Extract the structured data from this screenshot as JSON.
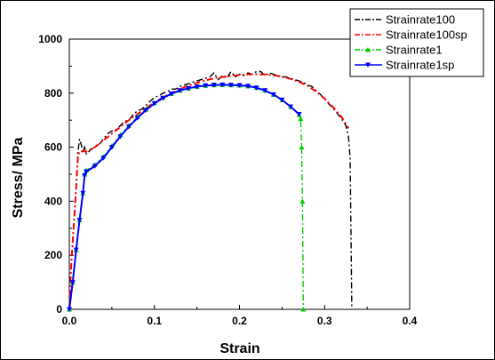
{
  "chart_data": {
    "type": "line",
    "xlabel": "Strain",
    "ylabel": "Stress/ MPa",
    "xlim": [
      0,
      0.4
    ],
    "ylim": [
      0,
      1000
    ],
    "x_ticks": [
      0.0,
      0.1,
      0.2,
      0.3,
      0.4
    ],
    "x_tick_labels": [
      "0.0",
      "0.1",
      "0.2",
      "0.3",
      "0.4"
    ],
    "y_ticks": [
      0,
      200,
      400,
      600,
      800,
      1000
    ],
    "y_tick_labels": [
      "0",
      "200",
      "400",
      "600",
      "800",
      "1000"
    ],
    "grid": false,
    "legend_position": "top-right",
    "series": [
      {
        "name": "Strainrate100",
        "color": "#000000",
        "dash": "dash-dot",
        "marker": "none",
        "points": [
          [
            0.0,
            0
          ],
          [
            0.002,
            150
          ],
          [
            0.005,
            300
          ],
          [
            0.008,
            450
          ],
          [
            0.01,
            580
          ],
          [
            0.012,
            630
          ],
          [
            0.014,
            610
          ],
          [
            0.016,
            580
          ],
          [
            0.018,
            600
          ],
          [
            0.02,
            575
          ],
          [
            0.025,
            590
          ],
          [
            0.03,
            600
          ],
          [
            0.035,
            610
          ],
          [
            0.04,
            630
          ],
          [
            0.045,
            650
          ],
          [
            0.05,
            660
          ],
          [
            0.055,
            665
          ],
          [
            0.06,
            680
          ],
          [
            0.065,
            695
          ],
          [
            0.07,
            700
          ],
          [
            0.075,
            720
          ],
          [
            0.08,
            735
          ],
          [
            0.085,
            740
          ],
          [
            0.09,
            755
          ],
          [
            0.095,
            770
          ],
          [
            0.1,
            785
          ],
          [
            0.105,
            790
          ],
          [
            0.11,
            800
          ],
          [
            0.115,
            805
          ],
          [
            0.12,
            815
          ],
          [
            0.125,
            815
          ],
          [
            0.13,
            825
          ],
          [
            0.135,
            830
          ],
          [
            0.14,
            835
          ],
          [
            0.145,
            840
          ],
          [
            0.15,
            845
          ],
          [
            0.155,
            850
          ],
          [
            0.16,
            855
          ],
          [
            0.165,
            860
          ],
          [
            0.17,
            875
          ],
          [
            0.175,
            850
          ],
          [
            0.18,
            865
          ],
          [
            0.185,
            855
          ],
          [
            0.19,
            880
          ],
          [
            0.195,
            860
          ],
          [
            0.2,
            870
          ],
          [
            0.205,
            865
          ],
          [
            0.21,
            875
          ],
          [
            0.215,
            870
          ],
          [
            0.22,
            880
          ],
          [
            0.225,
            880
          ],
          [
            0.23,
            865
          ],
          [
            0.235,
            875
          ],
          [
            0.24,
            870
          ],
          [
            0.245,
            865
          ],
          [
            0.25,
            860
          ],
          [
            0.255,
            860
          ],
          [
            0.26,
            855
          ],
          [
            0.265,
            850
          ],
          [
            0.27,
            845
          ],
          [
            0.275,
            840
          ],
          [
            0.28,
            830
          ],
          [
            0.285,
            825
          ],
          [
            0.29,
            810
          ],
          [
            0.295,
            795
          ],
          [
            0.3,
            780
          ],
          [
            0.305,
            760
          ],
          [
            0.31,
            745
          ],
          [
            0.315,
            725
          ],
          [
            0.32,
            705
          ],
          [
            0.325,
            680
          ],
          [
            0.328,
            640
          ],
          [
            0.33,
            560
          ],
          [
            0.331,
            300
          ],
          [
            0.332,
            0
          ]
        ]
      },
      {
        "name": "Strainrate100sp",
        "color": "#ff0000",
        "dash": "dash-dot",
        "marker": "none",
        "points": [
          [
            0.0,
            0
          ],
          [
            0.002,
            150
          ],
          [
            0.005,
            300
          ],
          [
            0.008,
            450
          ],
          [
            0.01,
            560
          ],
          [
            0.012,
            585
          ],
          [
            0.02,
            585
          ],
          [
            0.03,
            600
          ],
          [
            0.04,
            625
          ],
          [
            0.05,
            650
          ],
          [
            0.06,
            675
          ],
          [
            0.07,
            700
          ],
          [
            0.08,
            722
          ],
          [
            0.09,
            745
          ],
          [
            0.1,
            765
          ],
          [
            0.11,
            785
          ],
          [
            0.12,
            800
          ],
          [
            0.13,
            815
          ],
          [
            0.14,
            828
          ],
          [
            0.15,
            838
          ],
          [
            0.16,
            847
          ],
          [
            0.17,
            855
          ],
          [
            0.18,
            860
          ],
          [
            0.19,
            864
          ],
          [
            0.2,
            867
          ],
          [
            0.21,
            869
          ],
          [
            0.22,
            870
          ],
          [
            0.23,
            869
          ],
          [
            0.24,
            866
          ],
          [
            0.25,
            861
          ],
          [
            0.26,
            853
          ],
          [
            0.27,
            842
          ],
          [
            0.28,
            827
          ],
          [
            0.29,
            806
          ],
          [
            0.3,
            780
          ],
          [
            0.31,
            748
          ],
          [
            0.32,
            712
          ],
          [
            0.328,
            670
          ]
        ]
      },
      {
        "name": "Strainrate1",
        "color": "#00cc00",
        "dash": "dash-dot",
        "marker": "triangle-up",
        "points": [
          [
            0.0,
            0
          ],
          [
            0.004,
            100
          ],
          [
            0.008,
            220
          ],
          [
            0.012,
            330
          ],
          [
            0.016,
            430
          ],
          [
            0.018,
            500
          ],
          [
            0.02,
            515
          ],
          [
            0.03,
            535
          ],
          [
            0.04,
            565
          ],
          [
            0.05,
            605
          ],
          [
            0.06,
            645
          ],
          [
            0.07,
            680
          ],
          [
            0.08,
            712
          ],
          [
            0.09,
            740
          ],
          [
            0.1,
            764
          ],
          [
            0.11,
            783
          ],
          [
            0.12,
            798
          ],
          [
            0.13,
            810
          ],
          [
            0.14,
            818
          ],
          [
            0.15,
            824
          ],
          [
            0.16,
            828
          ],
          [
            0.17,
            830
          ],
          [
            0.18,
            831
          ],
          [
            0.19,
            830
          ],
          [
            0.2,
            829
          ],
          [
            0.21,
            826
          ],
          [
            0.22,
            820
          ],
          [
            0.23,
            810
          ],
          [
            0.24,
            795
          ],
          [
            0.25,
            775
          ],
          [
            0.26,
            750
          ],
          [
            0.27,
            720
          ],
          [
            0.272,
            705
          ],
          [
            0.273,
            600
          ],
          [
            0.274,
            400
          ],
          [
            0.275,
            0
          ]
        ]
      },
      {
        "name": "Strainrate1sp",
        "color": "#0000ff",
        "dash": "solid",
        "marker": "triangle-down",
        "points": [
          [
            0.0,
            0
          ],
          [
            0.004,
            100
          ],
          [
            0.008,
            220
          ],
          [
            0.012,
            330
          ],
          [
            0.016,
            430
          ],
          [
            0.018,
            495
          ],
          [
            0.02,
            510
          ],
          [
            0.03,
            530
          ],
          [
            0.04,
            560
          ],
          [
            0.05,
            600
          ],
          [
            0.06,
            640
          ],
          [
            0.07,
            676
          ],
          [
            0.08,
            708
          ],
          [
            0.09,
            737
          ],
          [
            0.1,
            762
          ],
          [
            0.11,
            782
          ],
          [
            0.12,
            798
          ],
          [
            0.13,
            810
          ],
          [
            0.14,
            818
          ],
          [
            0.15,
            824
          ],
          [
            0.16,
            828
          ],
          [
            0.17,
            830
          ],
          [
            0.18,
            831
          ],
          [
            0.19,
            830
          ],
          [
            0.2,
            829
          ],
          [
            0.21,
            826
          ],
          [
            0.22,
            820
          ],
          [
            0.23,
            810
          ],
          [
            0.24,
            795
          ],
          [
            0.25,
            775
          ],
          [
            0.26,
            750
          ],
          [
            0.27,
            722
          ]
        ]
      }
    ]
  }
}
